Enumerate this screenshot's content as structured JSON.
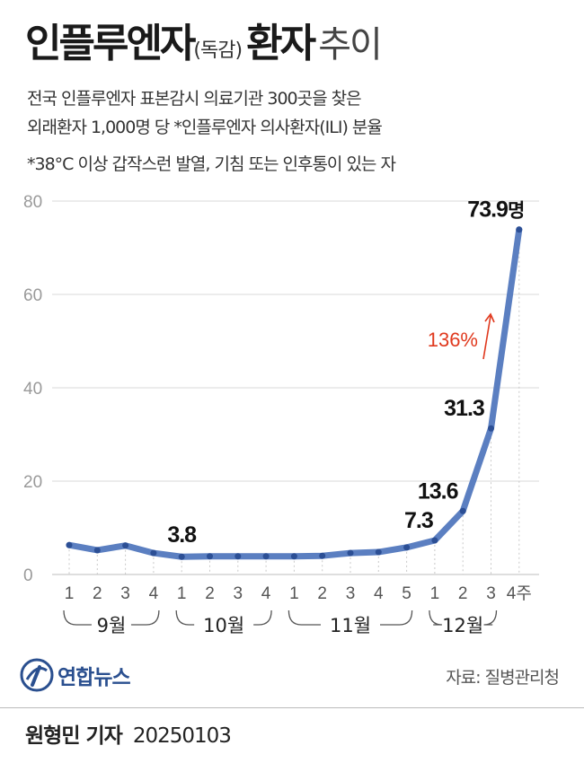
{
  "title": {
    "main": "인플루엔자",
    "paren": "(독감)",
    "rest": "환자",
    "trend": "추이"
  },
  "subtitle": {
    "line1": "전국 인플루엔자 표본감시 의료기관 300곳을 찾은",
    "line2": "외래환자 1,000명 당 *인플루엔자 의사환자(ILI) 분율"
  },
  "note": "*38°C 이상 갑작스런 발열, 기침 또는 인후통이 있는 자",
  "chart_data": {
    "type": "line",
    "x": [
      "1",
      "2",
      "3",
      "4",
      "1",
      "2",
      "3",
      "4",
      "1",
      "2",
      "3",
      "4",
      "5",
      "1",
      "2",
      "3",
      "4주"
    ],
    "values": [
      6.3,
      5.2,
      6.2,
      4.6,
      3.8,
      3.9,
      3.9,
      3.9,
      3.9,
      4.0,
      4.6,
      4.8,
      5.8,
      7.3,
      13.6,
      31.3,
      73.9
    ],
    "months": [
      {
        "label": "9월",
        "start": 0,
        "end": 3
      },
      {
        "label": "10월",
        "start": 4,
        "end": 7
      },
      {
        "label": "11월",
        "start": 8,
        "end": 12
      },
      {
        "label": "12월",
        "start": 13,
        "end": 15
      }
    ],
    "yticks": [
      "0",
      "20",
      "40",
      "60",
      "80"
    ],
    "ylim": [
      0,
      80
    ],
    "data_labels": [
      {
        "index": 4,
        "text": "3.8"
      },
      {
        "index": 13,
        "text": "7.3"
      },
      {
        "index": 14,
        "text": "13.6"
      },
      {
        "index": 15,
        "text": "31.3"
      },
      {
        "index": 16,
        "text": "73.9",
        "unit": "명"
      }
    ],
    "annotation": {
      "text": "136%",
      "arrow": "up-arrow-icon",
      "color": "#e0391e"
    },
    "line_color": "#5b7fc1",
    "point_color": "#2c4f95",
    "grid": "horizontal"
  },
  "source": "자료: 질병관리청",
  "logo": {
    "text": "연합뉴스",
    "icon": "yonhap-logo-icon"
  },
  "byline": {
    "name": "원형민 기자",
    "date": "20250103"
  }
}
